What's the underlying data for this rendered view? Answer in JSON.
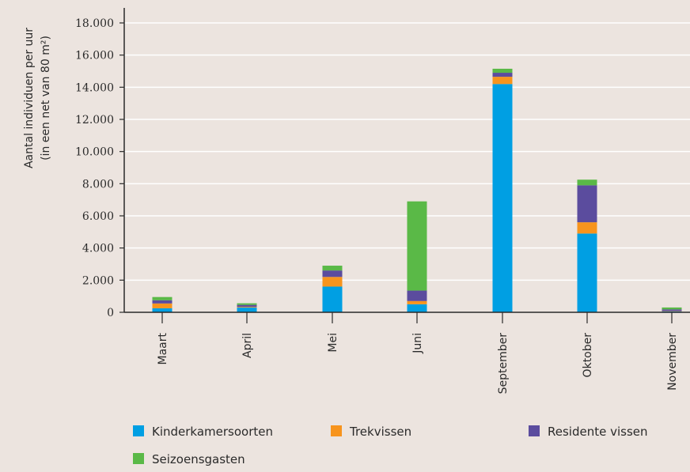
{
  "chart_data": {
    "type": "bar",
    "stacked": true,
    "ylabel_line1": "Aantal individuen per uur",
    "ylabel_line2": "(in een net van 80 m²)",
    "xlabel": "",
    "ylim": [
      0,
      18000
    ],
    "yticks": [
      0,
      2000,
      4000,
      6000,
      8000,
      10000,
      12000,
      14000,
      16000,
      18000
    ],
    "ytick_labels": [
      "0",
      "2.000",
      "4.000",
      "6.000",
      "8.000",
      "10.000",
      "12.000",
      "14.000",
      "16.000",
      "18.000"
    ],
    "grid": "horizontal",
    "categories": [
      "Maart",
      "April",
      "Mei",
      "Juni",
      "September",
      "Oktober",
      "November"
    ],
    "series": [
      {
        "name": "Kinderkamersoorten",
        "color": "#009fe3",
        "values": [
          250,
          300,
          1600,
          500,
          14200,
          4900,
          60
        ]
      },
      {
        "name": "Trekvissen",
        "color": "#f7941d",
        "values": [
          300,
          40,
          600,
          200,
          450,
          700,
          20
        ]
      },
      {
        "name": "Residente vissen",
        "color": "#5b4c9e",
        "values": [
          200,
          120,
          400,
          650,
          250,
          2300,
          100
        ]
      },
      {
        "name": "Seizoensgasten",
        "color": "#5ab947",
        "values": [
          200,
          100,
          300,
          5550,
          250,
          350,
          120
        ]
      }
    ],
    "legend_position": "bottom"
  }
}
